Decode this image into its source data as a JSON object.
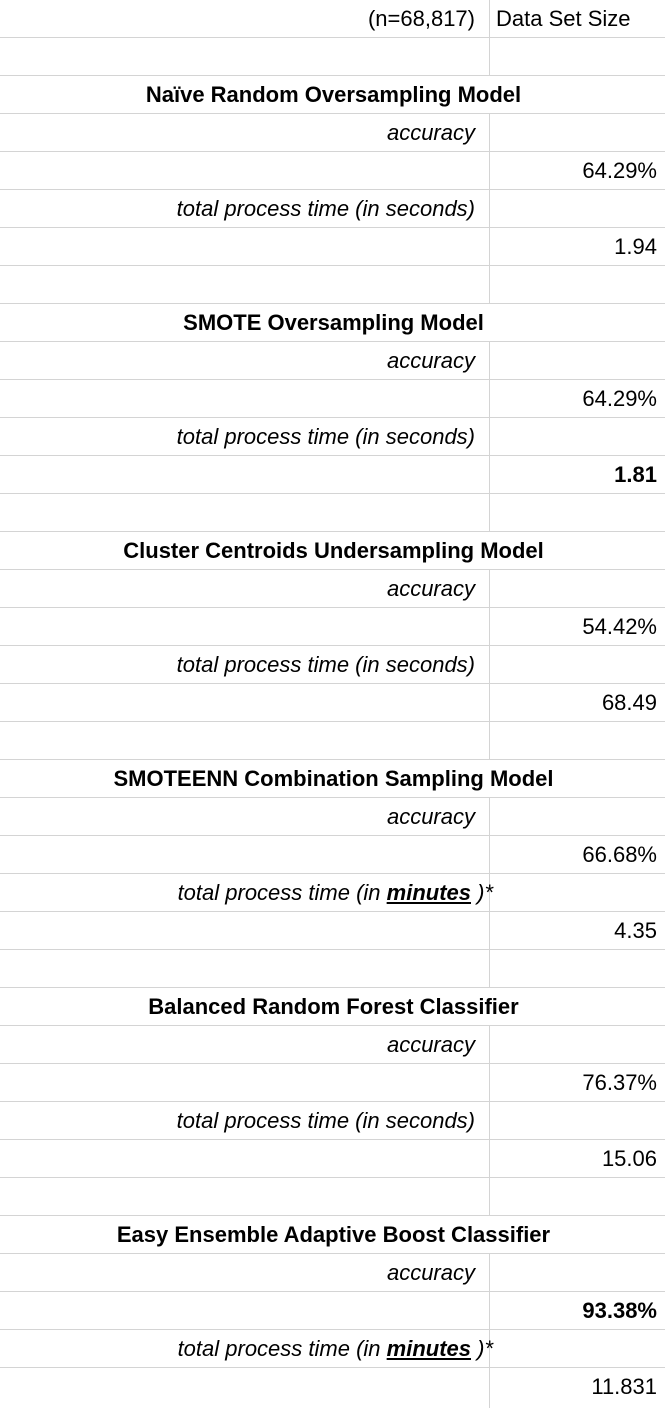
{
  "header": {
    "n": "(n=68,817)",
    "label": "Data Set Size"
  },
  "models": [
    {
      "title": "Naïve Random Oversampling Model",
      "accuracy_label": "accuracy",
      "accuracy": "64.29%",
      "time_label": "total process time (in seconds)",
      "time": "1.94"
    },
    {
      "title": "SMOTE Oversampling Model",
      "accuracy_label": "accuracy",
      "accuracy": "64.29%",
      "time_label": "total process time (in seconds)",
      "time": "1.81"
    },
    {
      "title": "Cluster Centroids Undersampling Model",
      "accuracy_label": "accuracy",
      "accuracy": "54.42%",
      "time_label": "total process time (in seconds)",
      "time": "68.49"
    },
    {
      "title": "SMOTEENN Combination Sampling Model",
      "accuracy_label": "accuracy",
      "accuracy": "66.68%",
      "time_label_prefix": "total process time (in ",
      "time_label_unit": "minutes",
      "time_label_suffix": " )*",
      "time": "4.35"
    },
    {
      "title": "Balanced Random Forest Classifier",
      "accuracy_label": "accuracy",
      "accuracy": "76.37%",
      "time_label": "total process time (in seconds)",
      "time": "15.06"
    },
    {
      "title": "Easy Ensemble Adaptive Boost Classifier",
      "accuracy_label": "accuracy",
      "accuracy": "93.38%",
      "time_label_prefix": "total process time (in ",
      "time_label_unit": "minutes",
      "time_label_suffix": " )*",
      "time": "11.831"
    }
  ]
}
